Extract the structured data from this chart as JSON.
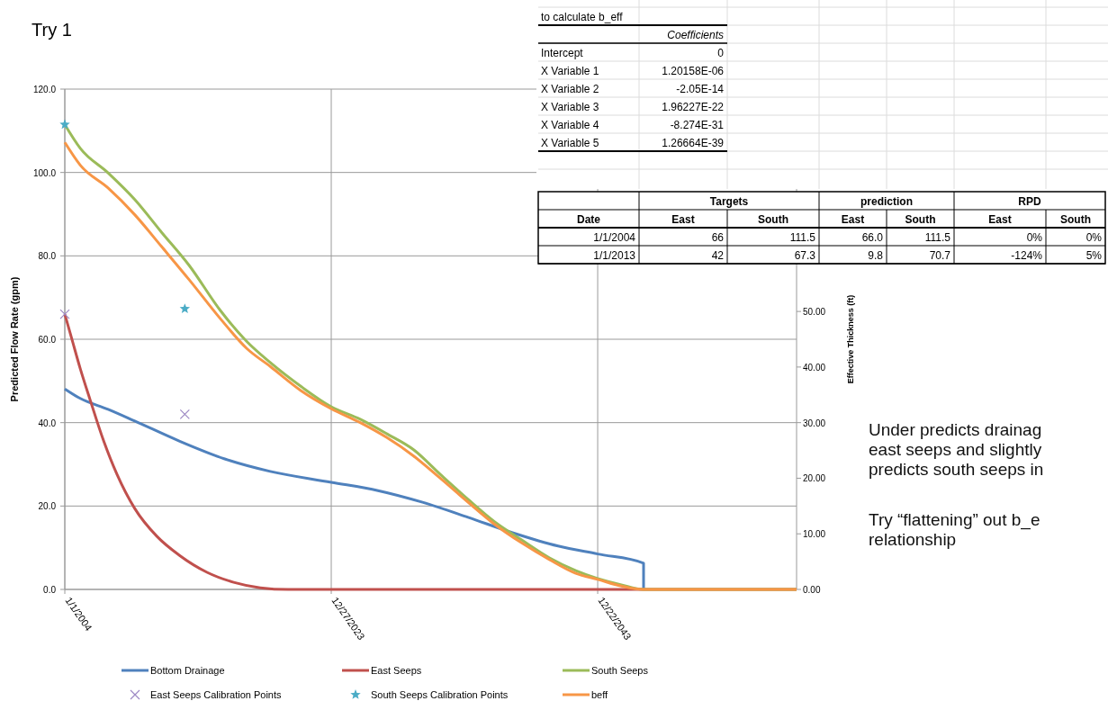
{
  "chart_data": [
    {
      "type": "line",
      "title": "Try 1",
      "ylabel": "Predicted Flow Rate (gpm)",
      "y2label": "Effective Thickness  (ft)",
      "annotations": [
        "Under predicts drainag\neast  seeps and slightly\npredicts south seeps in",
        "Try “flattening” out b_e\nrelationship"
      ],
      "xlim": [
        "2004-01-01",
        "2058-11-22"
      ],
      "xticks": [
        {
          "value": "2004-01-01",
          "label": "1/1/2004"
        },
        {
          "value": "2023-12-27",
          "label": "12/27/2023"
        },
        {
          "value": "2043-12-22",
          "label": "12/22/2043"
        }
      ],
      "ylim": [
        0,
        120
      ],
      "yticks": [
        {
          "value": 0,
          "label": "0.0"
        },
        {
          "value": 20,
          "label": "20.0"
        },
        {
          "value": 40,
          "label": "40.0"
        },
        {
          "value": 60,
          "label": "60.0"
        },
        {
          "value": 80,
          "label": "80.0"
        },
        {
          "value": 100,
          "label": "100.0"
        },
        {
          "value": 120,
          "label": "120.0"
        }
      ],
      "y2lim": [
        0,
        90
      ],
      "y2ticks": [
        {
          "value": 0,
          "label": "0.00"
        },
        {
          "value": 10,
          "label": "10.00"
        },
        {
          "value": 20,
          "label": "20.00"
        },
        {
          "value": 30,
          "label": "30.00"
        },
        {
          "value": 40,
          "label": "40.00"
        },
        {
          "value": 50,
          "label": "50.00"
        }
      ],
      "grid": true,
      "legend": "bottom",
      "line_style": "solid",
      "series": [
        {
          "name": "Bottom Drainage",
          "color": "#4f81bd",
          "x": [
            "2004-01-01",
            "2005-03",
            "2007-04",
            "2009-04",
            "2012-08",
            "2016-01",
            "2019-06",
            "2023-12-27",
            "2027-07",
            "2030-11",
            "2034-04",
            "2037-08",
            "2041-01",
            "2043-12-22",
            "2047-06",
            "2047-06"
          ],
          "values": [
            48.1,
            45.8,
            43.2,
            40.4,
            35.6,
            31.3,
            28.3,
            25.7,
            23.7,
            20.9,
            17.3,
            13.6,
            10.4,
            8.5,
            6.3,
            0
          ]
        },
        {
          "name": "East Seeps",
          "color": "#c0504d",
          "x": [
            "2004-01-01",
            "2004-07",
            "2005-03",
            "2005-12",
            "2006-12",
            "2007-12",
            "2009-04",
            "2010-12",
            "2012-08",
            "2014-09",
            "2016-09",
            "2018-09",
            "2020-10",
            "2058-11-22"
          ],
          "values": [
            66,
            60.4,
            52.9,
            45.3,
            35.6,
            27.6,
            19.4,
            12.7,
            8.2,
            4.1,
            1.7,
            0.4,
            0,
            0
          ]
        },
        {
          "name": "South Seeps",
          "color": "#9bbb59",
          "x": [
            "2004-01-01",
            "2005-03",
            "2007-04",
            "2009-04",
            "2011-04",
            "2013-05",
            "2015-09",
            "2017-09",
            "2019-06",
            "2021-10",
            "2023-12-27",
            "2026-03",
            "2028-03",
            "2030-03",
            "2032-03",
            "2034-04",
            "2036-04",
            "2038-04",
            "2040-05",
            "2042-05",
            "2043-12-22",
            "2045-10",
            "2047-06",
            "2058-11-22"
          ],
          "values": [
            111.5,
            105.8,
            99.9,
            93.5,
            85.7,
            77.7,
            66.9,
            59.4,
            54.4,
            48.6,
            43.8,
            40.8,
            37.3,
            33.5,
            27.6,
            21.6,
            16.2,
            11.9,
            7.6,
            4.5,
            2.6,
            1.1,
            0,
            0
          ]
        },
        {
          "name": "East Seeps Calibration Points",
          "type": "scatter",
          "marker": "cross",
          "color": "#9d88c4",
          "x": [
            "2004-01-01",
            "2013-01-01"
          ],
          "values": [
            66,
            42
          ]
        },
        {
          "name": "South Seeps Calibration Points",
          "type": "scatter",
          "marker": "star",
          "color": "#4bacc6",
          "x": [
            "2004-01-01",
            "2013-01-01"
          ],
          "values": [
            111.5,
            67.3
          ]
        },
        {
          "name": "beff",
          "color": "#f79646",
          "axis": "y2",
          "x": [
            "2004-01-01",
            "2005-03",
            "2007-04",
            "2009-04",
            "2011-04",
            "2013-05",
            "2015-09",
            "2017-09",
            "2019-06",
            "2021-10",
            "2023-12-27",
            "2026-03",
            "2028-03",
            "2030-03",
            "2032-03",
            "2034-04",
            "2036-04",
            "2038-04",
            "2040-05",
            "2042-05",
            "2043-12-22",
            "2045-10",
            "2047-06",
            "2058-11-22"
          ],
          "values": [
            80.4,
            76.3,
            72.2,
            67.4,
            61.7,
            55.7,
            48.7,
            43.3,
            40.1,
            35.7,
            32.5,
            30.0,
            27.3,
            24.0,
            20.0,
            15.7,
            11.7,
            8.4,
            5.4,
            2.9,
            1.8,
            0.6,
            0,
            0
          ]
        }
      ]
    },
    {
      "type": "other",
      "title": "to calculate b_eff",
      "annotations": [
        "Coefficients",
        "Intercept",
        "0",
        "X Variable 1",
        "1.20158E-06",
        "X Variable 2",
        "-2.05E-14",
        "X Variable 3",
        "1.96227E-22",
        "X Variable 4",
        "-8.274E-31",
        "X Variable 5",
        "1.26664E-39"
      ]
    },
    {
      "type": "other",
      "annotations": [
        "Targets",
        "prediction",
        "RPD",
        "Date",
        "East",
        "South",
        "East",
        "South",
        "East",
        "South",
        "1/1/2004",
        "66",
        "111.5",
        "66.0",
        "111.5",
        "0%",
        "0%",
        "1/1/2013",
        "42",
        "67.3",
        "9.8",
        "70.7",
        "-124%",
        "5%"
      ]
    }
  ]
}
